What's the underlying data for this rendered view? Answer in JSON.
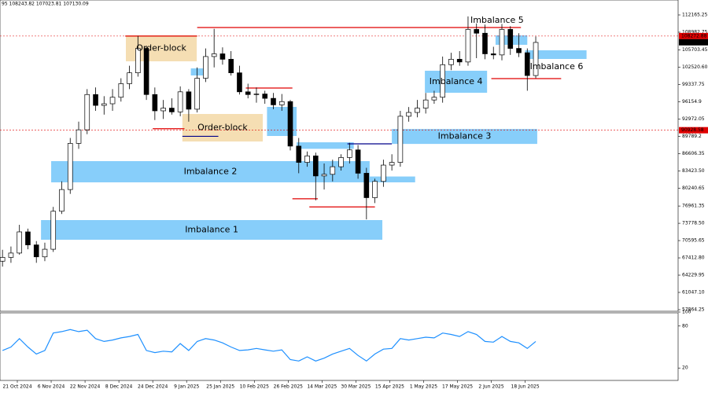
{
  "chart_data": [
    {
      "type": "candlestick",
      "header": "95 108243.82 107023.81 107130.09",
      "x": [
        0,
        4,
        8,
        12,
        16,
        20,
        24,
        28,
        32,
        36,
        40,
        44,
        48,
        52,
        56,
        60,
        64,
        68,
        72,
        76,
        80,
        84,
        88,
        92,
        96,
        100,
        104,
        108,
        112,
        116,
        120,
        124,
        128,
        132,
        136,
        140,
        144,
        148,
        152,
        156,
        160,
        164,
        168,
        172,
        176,
        180,
        184,
        188,
        192,
        196,
        200,
        204,
        208,
        212,
        216,
        220,
        224,
        228,
        232,
        236,
        240,
        244,
        248,
        252
      ],
      "open": [
        66800,
        67500,
        68300,
        72200,
        69800,
        67600,
        69000,
        76000,
        80000,
        88500,
        91000,
        97500,
        95500,
        95800,
        97000,
        99500,
        101500,
        106000,
        97500,
        94500,
        95000,
        94300,
        98000,
        94800,
        100500,
        104500,
        105000,
        104000,
        101500,
        98000,
        97500,
        97600,
        96800,
        95600,
        96200,
        88000,
        85000,
        86200,
        82500,
        82800,
        84200,
        85900,
        87300,
        83000,
        78500,
        81500,
        84500,
        85000,
        93500,
        94200,
        95000,
        96500,
        97000,
        103000,
        104000,
        103500,
        109500,
        108800,
        105000,
        104800,
        109500,
        106000,
        105200,
        101000
      ],
      "high": [
        68900,
        69500,
        73500,
        72800,
        70500,
        70200,
        76800,
        81500,
        89500,
        92500,
        98500,
        98800,
        97200,
        98500,
        100500,
        102800,
        108300,
        106500,
        98800,
        96500,
        96800,
        99000,
        98500,
        102500,
        106000,
        109600,
        106200,
        105500,
        102800,
        99500,
        98800,
        98200,
        97800,
        97600,
        96500,
        89500,
        87000,
        86800,
        84800,
        85500,
        86500,
        88600,
        88200,
        84000,
        82000,
        85500,
        86500,
        94500,
        95200,
        96500,
        97800,
        98200,
        104500,
        105200,
        105500,
        111900,
        110600,
        110400,
        106300,
        110500,
        110100,
        108800,
        106000,
        108200
      ],
      "low": [
        65800,
        66500,
        68000,
        69000,
        66500,
        66800,
        68500,
        75500,
        79200,
        87500,
        90200,
        94500,
        93800,
        94500,
        96200,
        98500,
        100800,
        96500,
        92800,
        93000,
        93800,
        93500,
        92500,
        94200,
        99800,
        102500,
        103000,
        101000,
        97500,
        96800,
        96000,
        95800,
        94800,
        94500,
        87200,
        83000,
        84200,
        78000,
        80000,
        81500,
        83500,
        84800,
        82000,
        74500,
        77500,
        80500,
        83500,
        84200,
        92500,
        93300,
        94000,
        95800,
        96000,
        102000,
        102800,
        102800,
        104200,
        104000,
        104000,
        103800,
        104800,
        104400,
        98200,
        100500
      ],
      "close": [
        67500,
        68300,
        72200,
        69800,
        67600,
        69000,
        76000,
        80000,
        88500,
        91000,
        97500,
        95500,
        95800,
        97000,
        99500,
        101500,
        106000,
        97500,
        94500,
        95000,
        94300,
        98000,
        94800,
        100500,
        104500,
        105000,
        104000,
        101500,
        98000,
        97500,
        97600,
        96800,
        95600,
        96200,
        88000,
        85000,
        86200,
        82500,
        82800,
        84200,
        85900,
        87300,
        83000,
        78500,
        81500,
        84500,
        85000,
        93500,
        94200,
        95000,
        96500,
        97000,
        103000,
        104000,
        103500,
        109500,
        108800,
        105000,
        104800,
        109500,
        106000,
        105200,
        101000,
        107100
      ],
      "xlim": [
        -1.18,
        319.27
      ],
      "ylim": [
        57574,
        114627
      ],
      "xticks": [
        {
          "value": 7,
          "label": "21 Oct 2024"
        },
        {
          "value": 23,
          "label": "6 Nov 2024"
        },
        {
          "value": 39,
          "label": "22 Nov 2024"
        },
        {
          "value": 55,
          "label": "8 Dec 2024"
        },
        {
          "value": 71,
          "label": "24 Dec 2024"
        },
        {
          "value": 87,
          "label": "9 Jan 2025"
        },
        {
          "value": 103,
          "label": "25 Jan 2025"
        },
        {
          "value": 119,
          "label": "10 Feb 2025"
        },
        {
          "value": 135,
          "label": "26 Feb 2025"
        },
        {
          "value": 151,
          "label": "14 Mar 2025"
        },
        {
          "value": 167,
          "label": "30 Mar 2025"
        },
        {
          "value": 183,
          "label": "15 Apr 2025"
        },
        {
          "value": 199,
          "label": "1 May 2025"
        },
        {
          "value": 215,
          "label": "17 May 2025"
        },
        {
          "value": 231,
          "label": "2 Jun 2025"
        },
        {
          "value": 247,
          "label": "18 Jun 2025"
        }
      ],
      "yticks": [
        112165.25,
        108982.75,
        105703.45,
        {
          "value": 102520.6,
          "label": "102520.60"
        },
        99337.75,
        96154.9,
        92972.05,
        89789.2,
        86606.35,
        {
          "value": 83423.5,
          "label": "83423.50"
        },
        80240.65,
        76961.35,
        {
          "value": 73778.5,
          "label": "73778.50"
        },
        70595.65,
        {
          "value": 67412.8,
          "label": "67412.80"
        },
        64229.95,
        {
          "value": 61047.1,
          "label": "61047.10"
        },
        57864.25
      ],
      "price_labels": [
        {
          "value": 108272.88,
          "color": "#e00000"
        },
        {
          "value": 107130.09,
          "color": "#000000"
        },
        {
          "value": 90928.58,
          "color": "#e00000"
        }
      ],
      "zones": [
        {
          "label": "Imbalance 1",
          "x": [
            18.2,
            179.5
          ],
          "y": [
            70752,
            74372
          ],
          "color": "#87cefa"
        },
        {
          "label": "Imbalance 2",
          "x": [
            23,
            173.5
          ],
          "y": [
            81323,
            85232
          ],
          "color": "#87cefa"
        },
        {
          "label": "Imbalance 3",
          "x": [
            184,
            252.7
          ],
          "y": [
            88403,
            91154
          ],
          "color": "#87cefa"
        },
        {
          "label": "Imbalance 4",
          "x": [
            199.6,
            229
          ],
          "y": [
            97830,
            101884
          ],
          "color": "#87cefa"
        },
        {
          "label": "Imbalance 5",
          "x": [
            233,
            248
          ],
          "y": [
            106660,
            108400
          ],
          "color": "#87cefa"
        },
        {
          "label": "Imbalance 6",
          "x": [
            247,
            276
          ],
          "y": [
            104057,
            105650
          ],
          "color": "#87cefa"
        },
        {
          "x": [
            125,
            139
          ],
          "y": [
            89866,
            95224
          ],
          "color": "#87cefa"
        },
        {
          "x": [
            89,
            97
          ],
          "y": [
            101015,
            102318
          ],
          "color": "#87cefa"
        },
        {
          "x": [
            139,
            166
          ],
          "y": [
            87500,
            88700
          ],
          "color": "#87cefa"
        },
        {
          "x": [
            173.5,
            195
          ],
          "y": [
            81323,
            82400
          ],
          "color": "#87cefa"
        },
        {
          "label": "Order-block",
          "x": [
            58.3,
            91.8
          ],
          "y": [
            103620,
            108400
          ],
          "color": "#f5deb3"
        },
        {
          "label": "Order-block",
          "x": [
            85,
            123
          ],
          "y": [
            88850,
            93920
          ],
          "color": "#f5deb3"
        }
      ],
      "levels": [
        {
          "x": [
            92,
            245
          ],
          "y": 109848,
          "color": "#e00000"
        },
        {
          "x": [
            58,
            92
          ],
          "y": 108272,
          "color": "#e00000"
        },
        {
          "x": [
            71,
            86
          ],
          "y": 91200,
          "color": "#e00000"
        },
        {
          "x": [
            85,
            102
          ],
          "y": 89800,
          "color": "#00008b"
        },
        {
          "x": [
            115,
            137
          ],
          "y": 98700,
          "color": "#e00000"
        },
        {
          "x": [
            137,
            149
          ],
          "y": 78300,
          "color": "#e00000"
        },
        {
          "x": [
            145,
            176
          ],
          "y": 76800,
          "color": "#e00000"
        },
        {
          "x": [
            163,
            184
          ],
          "y": 88418,
          "color": "#00008b"
        },
        {
          "x": [
            231,
            264
          ],
          "y": 100436,
          "color": "#e00000"
        }
      ]
    },
    {
      "type": "line",
      "color": "#1e90ff",
      "values": [
        45,
        50,
        62,
        50,
        40,
        45,
        70,
        72,
        75,
        72,
        74,
        62,
        58,
        60,
        63,
        65,
        68,
        45,
        42,
        44,
        43,
        55,
        45,
        58,
        62,
        60,
        56,
        50,
        45,
        46,
        48,
        46,
        44,
        46,
        32,
        30,
        36,
        30,
        34,
        40,
        44,
        48,
        38,
        30,
        40,
        47,
        48,
        62,
        60,
        62,
        64,
        63,
        70,
        68,
        65,
        72,
        68,
        58,
        57,
        65,
        58,
        56,
        48,
        58
      ],
      "ylim": [
        0,
        100
      ],
      "yticks": [
        100,
        80,
        20
      ]
    }
  ]
}
